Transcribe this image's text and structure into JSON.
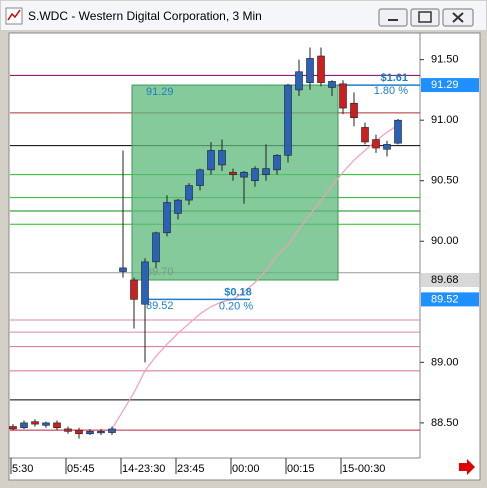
{
  "window": {
    "title": "S.WDC - Western Digital Corporation, 3 Min"
  },
  "chart_data": {
    "type": "candlestick",
    "categories": [
      "5:30",
      null,
      null,
      null,
      null,
      "05:45",
      null,
      null,
      null,
      null,
      "14-23:30",
      null,
      null,
      null,
      null,
      "23:45",
      null,
      null,
      null,
      null,
      "00:00",
      null,
      null,
      null,
      null,
      "00:15",
      null,
      null,
      null,
      null,
      "15-00:30",
      null,
      null,
      null,
      null,
      null
    ],
    "open": [
      88.47,
      88.46,
      88.51,
      88.48,
      88.5,
      88.45,
      88.44,
      88.41,
      88.42,
      88.42,
      89.75,
      89.68,
      89.48,
      89.83,
      90.07,
      90.23,
      90.34,
      90.46,
      90.59,
      90.63,
      90.57,
      90.53,
      90.5,
      90.55,
      90.59,
      90.71,
      91.25,
      91.31,
      91.53,
      91.27,
      91.3,
      91.14,
      90.94,
      90.84,
      90.76,
      90.81
    ],
    "high": [
      88.49,
      88.52,
      88.53,
      88.51,
      88.52,
      88.47,
      88.46,
      88.45,
      88.45,
      88.47,
      90.75,
      89.7,
      89.86,
      90.08,
      90.38,
      90.35,
      90.48,
      90.6,
      90.82,
      90.84,
      90.6,
      90.58,
      90.62,
      90.8,
      90.72,
      91.3,
      91.5,
      91.6,
      91.6,
      91.33,
      91.33,
      91.23,
      90.98,
      90.88,
      90.83,
      91.01
    ],
    "low": [
      88.44,
      88.45,
      88.47,
      88.46,
      88.44,
      88.41,
      88.37,
      88.4,
      88.4,
      88.4,
      89.7,
      89.28,
      89.0,
      89.78,
      90.04,
      90.18,
      90.3,
      90.42,
      90.55,
      90.58,
      90.5,
      90.31,
      90.45,
      90.5,
      90.55,
      90.65,
      91.2,
      91.25,
      91.28,
      91.2,
      91.05,
      90.95,
      90.8,
      90.73,
      90.7,
      90.8
    ],
    "close": [
      88.45,
      88.5,
      88.49,
      88.5,
      88.46,
      88.43,
      88.41,
      88.43,
      88.43,
      88.45,
      89.78,
      89.52,
      89.83,
      90.07,
      90.32,
      90.34,
      90.46,
      90.59,
      90.75,
      90.75,
      90.55,
      90.57,
      90.6,
      90.6,
      90.71,
      91.29,
      91.4,
      91.51,
      91.31,
      91.32,
      91.1,
      91.02,
      90.82,
      90.77,
      90.8,
      91.0
    ],
    "up_color": "#2b62b8",
    "down_color": "#cc2020",
    "series": [
      {
        "color": "#f0a0b8",
        "values": [
          null,
          null,
          null,
          null,
          null,
          null,
          null,
          null,
          null,
          88.45,
          88.6,
          88.75,
          88.93,
          89.05,
          89.15,
          89.24,
          89.32,
          89.4,
          89.46,
          89.5,
          89.52,
          89.58,
          89.66,
          89.76,
          89.88,
          89.97,
          90.1,
          90.22,
          90.34,
          90.46,
          90.57,
          90.67,
          90.75,
          90.83,
          90.9,
          90.96
        ]
      }
    ],
    "levels": [
      {
        "value": 91.37,
        "color": "#800060"
      },
      {
        "value": 91.06,
        "color": "#b03030"
      },
      {
        "value": 90.79,
        "color": "#000000"
      },
      {
        "value": 90.55,
        "color": "#22bb22"
      },
      {
        "value": 90.36,
        "color": "#22bb22"
      },
      {
        "value": 90.25,
        "color": "#118811"
      },
      {
        "value": 90.14,
        "color": "#22bb22"
      },
      {
        "value": 89.74,
        "color": "#999999"
      },
      {
        "value": 89.35,
        "color": "#e080b0"
      },
      {
        "value": 89.25,
        "color": "#e080b0"
      },
      {
        "value": 89.13,
        "color": "#d070a0"
      },
      {
        "value": 88.93,
        "color": "#d070a0"
      },
      {
        "value": 88.69,
        "color": "#000000"
      },
      {
        "value": 88.44,
        "color": "#c02040"
      }
    ],
    "ylim": [
      88.21,
      91.72
    ],
    "yticks": [
      {
        "value": 88.5,
        "label": "88.50"
      },
      {
        "value": 89,
        "label": "89.00"
      },
      {
        "value": 90,
        "label": "90.00"
      },
      {
        "value": 90.5,
        "label": "90.50"
      },
      {
        "value": 91,
        "label": "91.00"
      },
      {
        "value": 91.5,
        "label": "91.50"
      }
    ],
    "measure_box": {
      "high": 91.29,
      "low": 89.68,
      "color": "#5cb87a"
    },
    "measure_labels": [
      "91.29",
      "89.70",
      "89.52"
    ],
    "gain_labels": [
      "$1.61",
      "1.80 %"
    ],
    "small_labels": [
      "$0.18",
      "0.20 %"
    ],
    "price_flags": [
      {
        "value": 91.29,
        "label": "91.29",
        "color": "#1e90ff"
      },
      {
        "value": 89.68,
        "label": "89.68",
        "color": "#d8d8d8"
      },
      {
        "value": 89.52,
        "label": "89.52",
        "color": "#1e90ff"
      }
    ]
  }
}
